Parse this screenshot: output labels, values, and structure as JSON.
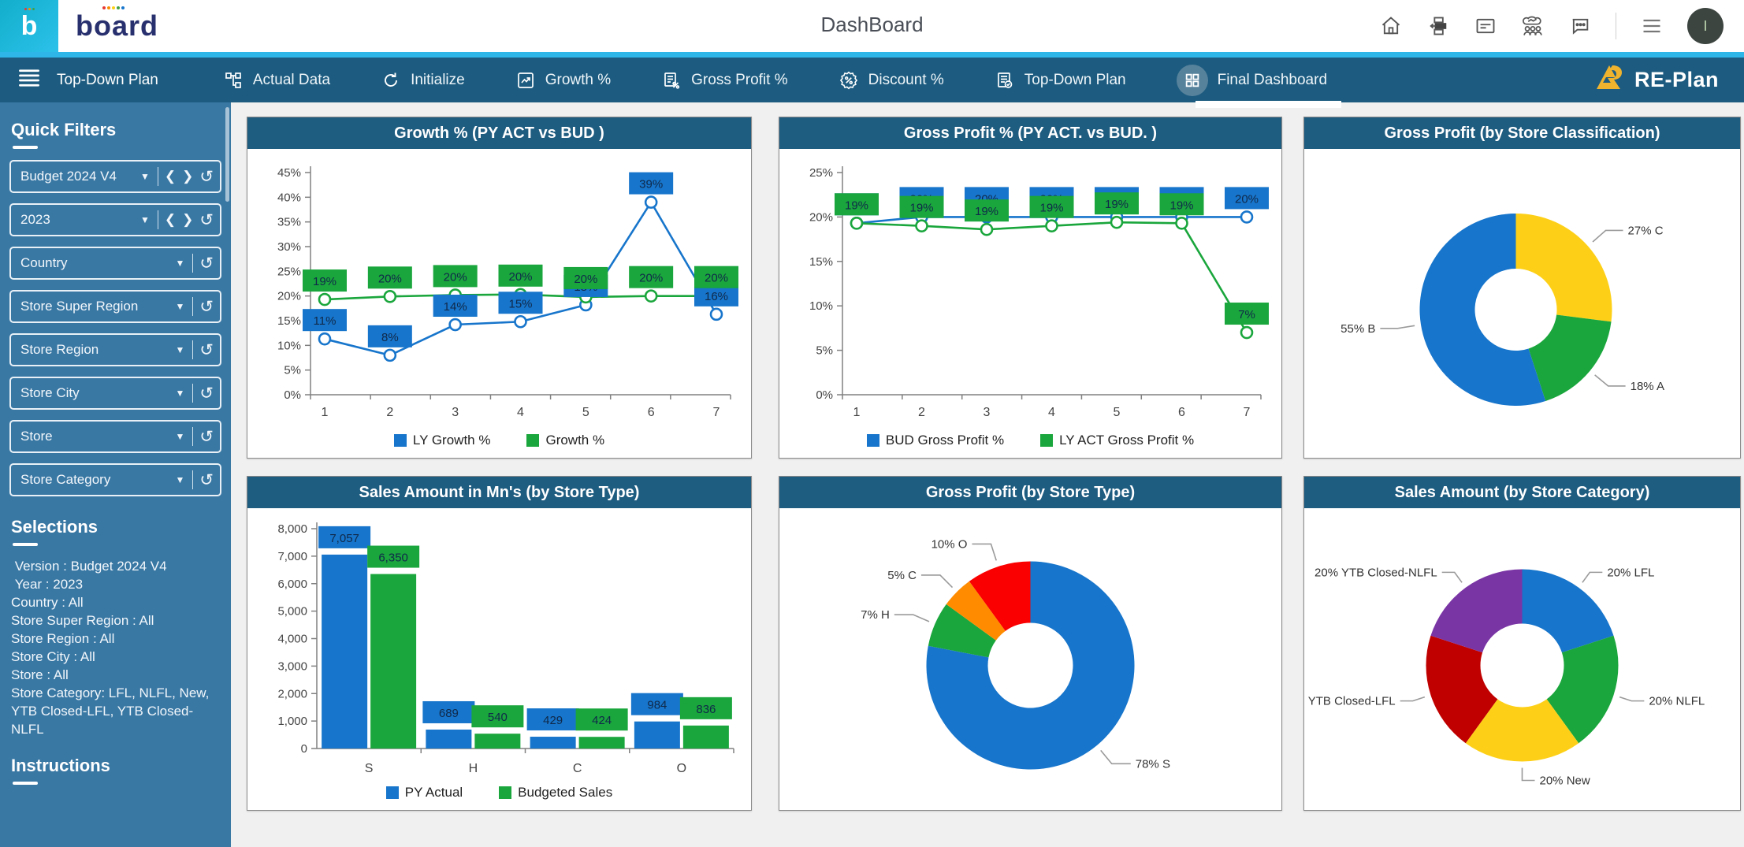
{
  "topbar": {
    "title": "DashBoard",
    "logo_letter": "b",
    "logo_text": "board",
    "icons": [
      "home-icon",
      "workflow-icon",
      "card-icon",
      "team-report-icon",
      "chat-icon"
    ],
    "avatar_label": "I"
  },
  "navbar": {
    "menu_label": "Top-Down Plan",
    "tabs": [
      {
        "label": "Actual Data",
        "icon": "hierarchy-icon",
        "active": false
      },
      {
        "label": "Initialize",
        "icon": "refresh-icon",
        "active": false
      },
      {
        "label": "Growth %",
        "icon": "growth-chart-icon",
        "active": false
      },
      {
        "label": "Gross Profit %",
        "icon": "document-percent-icon",
        "active": false
      },
      {
        "label": "Discount %",
        "icon": "badge-percent-icon",
        "active": false
      },
      {
        "label": "Top-Down Plan",
        "icon": "document-check-icon",
        "active": false
      },
      {
        "label": "Final Dashboard",
        "icon": "dashboard-grid-icon",
        "active": true
      }
    ],
    "brand": "RE-Plan"
  },
  "sidebar": {
    "quick_filters_title": "Quick Filters",
    "filters": [
      {
        "label": "Budget 2024 V4",
        "has_nav": true
      },
      {
        "label": "2023",
        "has_nav": true
      },
      {
        "label": "Country",
        "has_nav": false
      },
      {
        "label": "Store Super Region",
        "has_nav": false
      },
      {
        "label": "Store Region",
        "has_nav": false
      },
      {
        "label": "Store City",
        "has_nav": false
      },
      {
        "label": "Store",
        "has_nav": false
      },
      {
        "label": "Store Category",
        "has_nav": false
      }
    ],
    "selections_title": "Selections",
    "selections": [
      " Version : Budget 2024 V4",
      " Year : 2023",
      "Country : All",
      "Store Super Region : All",
      "Store Region : All",
      "Store City : All",
      "Store : All",
      "Store Category: LFL, NLFL, New, YTB Closed-LFL, YTB Closed-NLFL"
    ],
    "instructions_title": "Instructions"
  },
  "colors": {
    "blue": "#1775cb",
    "green": "#1aa63c",
    "yellow": "#fdd017",
    "orange": "#ff8c00",
    "red": "#fa0000",
    "dark_red": "#c00000",
    "purple": "#7a35a5",
    "navbar": "#1d5c80",
    "sidebar": "#3a78a4",
    "accent_cyan": "#2eb6e8",
    "chip_text": "#10294a"
  },
  "chart_data": [
    {
      "type": "line",
      "title": "Growth % (PY ACT vs BUD )",
      "x": [
        1,
        2,
        3,
        4,
        5,
        6,
        7
      ],
      "ylim": [
        0,
        45
      ],
      "ystep": 5,
      "yformat": "percent",
      "series": [
        {
          "name": "LY Growth %",
          "color": "#1775cb",
          "values": [
            11.3,
            8,
            14.2,
            14.8,
            18.2,
            39,
            16.3
          ],
          "labels": [
            "11%",
            "8%",
            "14%",
            "15%",
            "18%",
            "39%",
            "16%"
          ]
        },
        {
          "name": "Growth %",
          "color": "#1aa63c",
          "values": [
            19.3,
            19.9,
            20.2,
            20.3,
            19.8,
            20,
            20
          ],
          "labels": [
            "19%",
            "20%",
            "20%",
            "20%",
            "20%",
            "20%",
            "20%"
          ]
        }
      ],
      "legend_position": "bottom"
    },
    {
      "type": "line",
      "title": "Gross Profit % (PY ACT. vs BUD. )",
      "x": [
        1,
        2,
        3,
        4,
        5,
        6,
        7
      ],
      "ylim": [
        0,
        25
      ],
      "ystep": 5,
      "yformat": "percent",
      "series": [
        {
          "name": "BUD Gross Profit %",
          "color": "#1775cb",
          "values": [
            19.3,
            20,
            20,
            20,
            20,
            20,
            20
          ],
          "labels": [
            "19%",
            "20%",
            "20%",
            "20%",
            "20%",
            "20%",
            "20%"
          ]
        },
        {
          "name": "LY ACT Gross Profit %",
          "color": "#1aa63c",
          "values": [
            19.3,
            19,
            18.6,
            19,
            19.4,
            19.3,
            7
          ],
          "labels": [
            "19%",
            "19%",
            "19%",
            "19%",
            "19%",
            "19%",
            "7%"
          ]
        }
      ],
      "legend_position": "bottom"
    },
    {
      "type": "donut",
      "title": "Gross Profit (by Store Classification)",
      "slices": [
        {
          "label": "27% C",
          "value": 27,
          "color": "#fdd017"
        },
        {
          "label": "18% A",
          "value": 18,
          "color": "#1aa63c"
        },
        {
          "label": "55% B",
          "value": 55,
          "color": "#1775cb"
        }
      ]
    },
    {
      "type": "bar",
      "title": "Sales Amount in Mn's (by Store Type)",
      "categories": [
        "S",
        "H",
        "C",
        "O"
      ],
      "ylim": [
        0,
        8000
      ],
      "ystep": 1000,
      "yformat": "comma",
      "series": [
        {
          "name": "PY Actual",
          "color": "#1775cb",
          "values": [
            7057,
            689,
            429,
            984
          ]
        },
        {
          "name": "Budgeted Sales",
          "color": "#1aa63c",
          "values": [
            6350,
            540,
            424,
            836
          ]
        }
      ],
      "legend_position": "bottom"
    },
    {
      "type": "donut",
      "title": "Gross Profit (by Store Type)",
      "slices": [
        {
          "label": "78% S",
          "value": 78,
          "color": "#1775cb"
        },
        {
          "label": "7% H",
          "value": 7,
          "color": "#1aa63c"
        },
        {
          "label": "5% C",
          "value": 5,
          "color": "#ff8c00"
        },
        {
          "label": "10% O",
          "value": 10,
          "color": "#fa0000"
        }
      ]
    },
    {
      "type": "donut",
      "title": "Sales Amount (by Store Category)",
      "slices": [
        {
          "label": "20% LFL",
          "value": 20,
          "color": "#1775cb"
        },
        {
          "label": "20% NLFL",
          "value": 20,
          "color": "#1aa63c"
        },
        {
          "label": "20% New",
          "value": 20,
          "color": "#fdd017"
        },
        {
          "label": "YTB Closed-LFL",
          "value": 20,
          "color": "#c00000"
        },
        {
          "label": "20% YTB Closed-NLFL",
          "value": 20,
          "color": "#7a35a5"
        }
      ]
    }
  ]
}
